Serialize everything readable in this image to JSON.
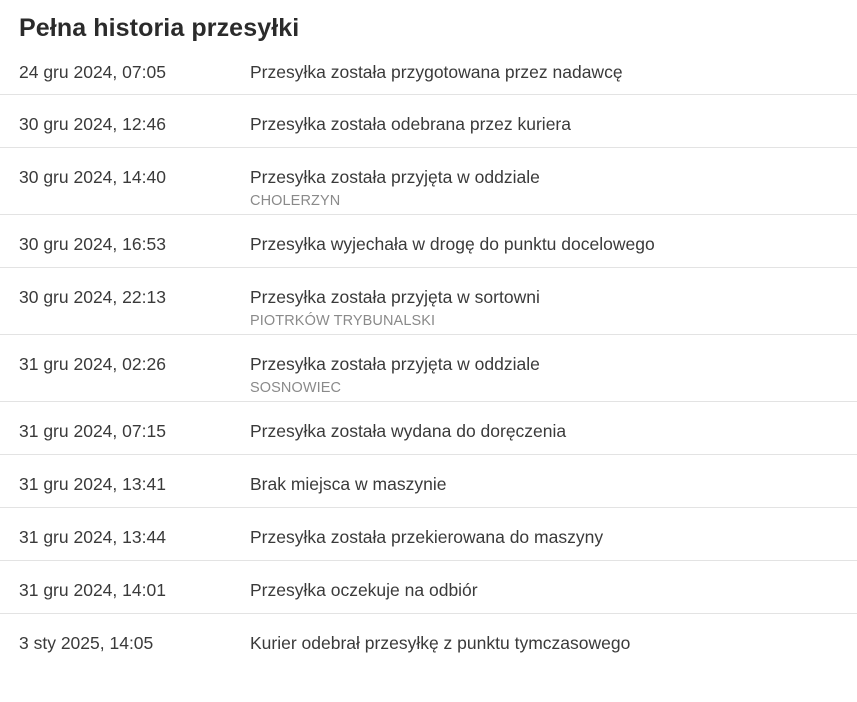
{
  "title": "Pełna historia przesyłki",
  "events": [
    {
      "date": "24 gru 2024, 07:05",
      "description": "Przesyłka została przygotowana przez nadawcę",
      "location": ""
    },
    {
      "date": "30 gru 2024, 12:46",
      "description": "Przesyłka została odebrana przez kuriera",
      "location": ""
    },
    {
      "date": "30 gru 2024, 14:40",
      "description": "Przesyłka została przyjęta w oddziale",
      "location": "CHOLERZYN"
    },
    {
      "date": "30 gru 2024, 16:53",
      "description": "Przesyłka wyjechała w drogę do punktu docelowego",
      "location": ""
    },
    {
      "date": "30 gru 2024, 22:13",
      "description": "Przesyłka została przyjęta w sortowni",
      "location": "PIOTRKÓW TRYBUNALSKI"
    },
    {
      "date": "31 gru 2024, 02:26",
      "description": "Przesyłka została przyjęta w oddziale",
      "location": "SOSNOWIEC"
    },
    {
      "date": "31 gru 2024, 07:15",
      "description": "Przesyłka została wydana do doręczenia",
      "location": ""
    },
    {
      "date": "31 gru 2024, 13:41",
      "description": "Brak miejsca w maszynie",
      "location": ""
    },
    {
      "date": "31 gru 2024, 13:44",
      "description": "Przesyłka została przekierowana do maszyny",
      "location": ""
    },
    {
      "date": "31 gru 2024, 14:01",
      "description": "Przesyłka oczekuje na odbiór",
      "location": ""
    },
    {
      "date": "3 sty 2025, 14:05",
      "description": "Kurier odebrał przesyłkę z punktu tymczasowego",
      "location": ""
    }
  ]
}
